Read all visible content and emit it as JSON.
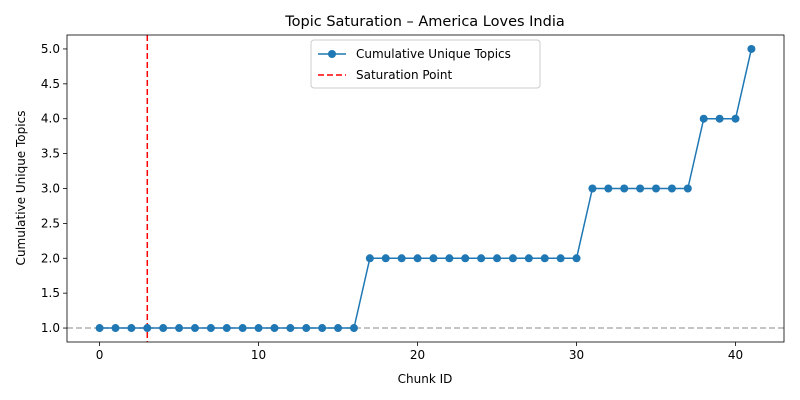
{
  "chart_data": {
    "type": "line",
    "title": "Topic Saturation – America Loves India",
    "xlabel": "Chunk ID",
    "ylabel": "Cumulative Unique Topics",
    "xlim": [
      -2.05,
      43.05
    ],
    "ylim": [
      0.8,
      5.2
    ],
    "xticks": [
      0,
      10,
      20,
      30,
      40
    ],
    "yticks": [
      1.0,
      1.5,
      2.0,
      2.5,
      3.0,
      3.5,
      4.0,
      4.5,
      5.0
    ],
    "xtick_labels": [
      "0",
      "10",
      "20",
      "30",
      "40"
    ],
    "ytick_labels": [
      "1.0",
      "1.5",
      "2.0",
      "2.5",
      "3.0",
      "3.5",
      "4.0",
      "4.5",
      "5.0"
    ],
    "grid": false,
    "legend_position": "upper center",
    "series": [
      {
        "name": "Cumulative Unique Topics",
        "color": "#1f77b4",
        "marker": "circle",
        "x": [
          0,
          1,
          2,
          3,
          4,
          5,
          6,
          7,
          8,
          9,
          10,
          11,
          12,
          13,
          14,
          15,
          16,
          17,
          18,
          19,
          20,
          21,
          22,
          23,
          24,
          25,
          26,
          27,
          28,
          29,
          30,
          31,
          32,
          33,
          34,
          35,
          36,
          37,
          38,
          39,
          40,
          41
        ],
        "y": [
          1,
          1,
          1,
          1,
          1,
          1,
          1,
          1,
          1,
          1,
          1,
          1,
          1,
          1,
          1,
          1,
          1,
          2,
          2,
          2,
          2,
          2,
          2,
          2,
          2,
          2,
          2,
          2,
          2,
          2,
          2,
          3,
          3,
          3,
          3,
          3,
          3,
          3,
          4,
          4,
          4,
          5
        ]
      }
    ],
    "reference_lines": [
      {
        "name": "Saturation Point",
        "orientation": "vertical",
        "value": 3,
        "color": "#ff0000",
        "style": "dashed",
        "in_legend": true
      },
      {
        "orientation": "horizontal",
        "value": 1,
        "color": "#b0b0b0",
        "style": "dashed",
        "in_legend": false
      }
    ]
  }
}
